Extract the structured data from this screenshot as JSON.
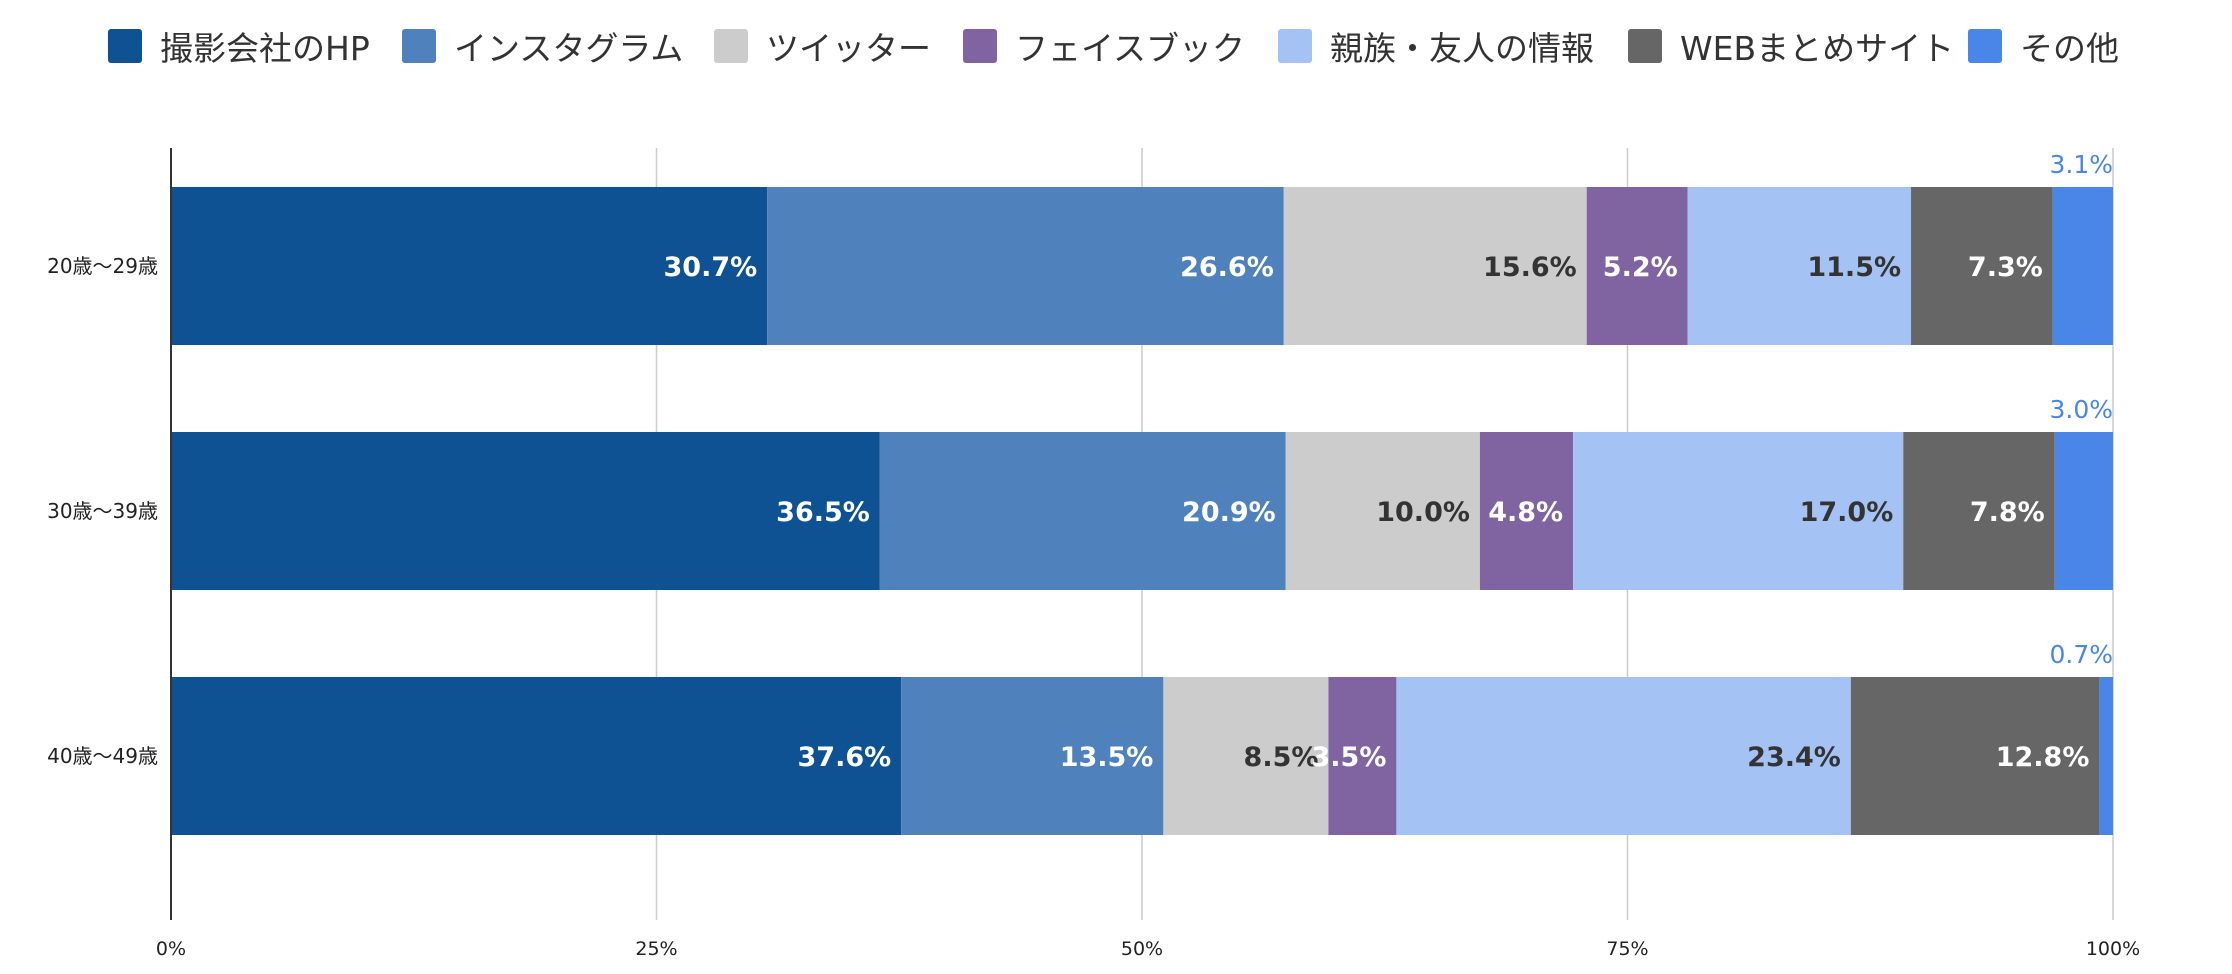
{
  "chart_data": {
    "type": "bar",
    "orientation": "horizontal",
    "stacked": true,
    "percent": true,
    "categories": [
      "20歳〜29歳",
      "30歳〜39歳",
      "40歳〜49歳"
    ],
    "xlim": [
      0,
      100
    ],
    "x_ticks": [
      0,
      25,
      50,
      75,
      100
    ],
    "x_tick_labels": [
      "0%",
      "25%",
      "50%",
      "75%",
      "100%"
    ],
    "grid": true,
    "legend_position": "top",
    "series": [
      {
        "name": "撮影会社のHP",
        "color": "#0e5294",
        "values": [
          30.7,
          36.5,
          37.6
        ],
        "labels": [
          "30.7%",
          "36.5%",
          "37.6%"
        ]
      },
      {
        "name": "インスタグラム",
        "color": "#4f81bd",
        "values": [
          26.6,
          20.9,
          13.5
        ],
        "labels": [
          "26.6%",
          "20.9%",
          "13.5%"
        ]
      },
      {
        "name": "ツイッター",
        "color": "#cccccc",
        "values": [
          15.6,
          10.0,
          8.5
        ],
        "labels": [
          "15.6%",
          "10.0%",
          "8.5%"
        ]
      },
      {
        "name": "フェイスブック",
        "color": "#8064a2",
        "values": [
          5.2,
          4.8,
          3.5
        ],
        "labels": [
          "5.2%",
          "4.8%",
          "3.5%"
        ]
      },
      {
        "name": "親族・友人の情報",
        "color": "#a4c2f4",
        "values": [
          11.5,
          17.0,
          23.4
        ],
        "labels": [
          "11.5%",
          "17.0%",
          "23.4%"
        ]
      },
      {
        "name": "WEBまとめサイト",
        "color": "#666666",
        "values": [
          7.3,
          7.8,
          12.8
        ],
        "labels": [
          "7.3%",
          "7.8%",
          "12.8%"
        ]
      },
      {
        "name": "その他",
        "color": "#4a86e8",
        "values": [
          3.1,
          3.0,
          0.7
        ],
        "labels": [
          "3.1%",
          "3.0%",
          "0.7%"
        ]
      }
    ],
    "label_colors": [
      "#ffffff",
      "#ffffff",
      "#333333",
      "#ffffff",
      "#333333",
      "#ffffff",
      "#4a86e8"
    ]
  }
}
